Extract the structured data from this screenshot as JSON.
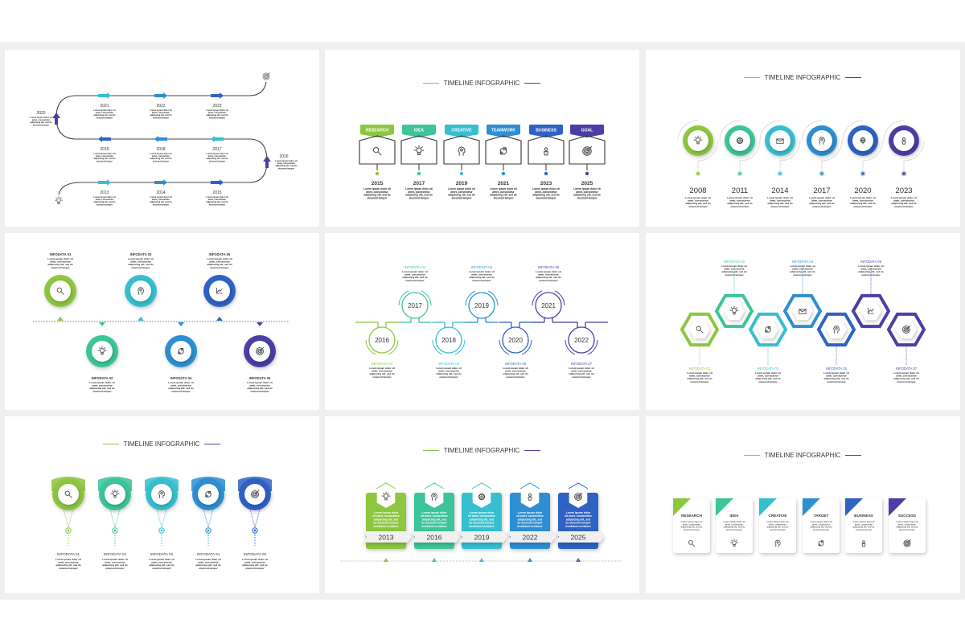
{
  "colors": [
    "#8dc63f",
    "#3cc49a",
    "#36bfcf",
    "#2d8fd2",
    "#2f62c4",
    "#4b3fa6"
  ],
  "text_color": "#333333",
  "background": "#efefef",
  "lorem": [
    "Lorem ipsum dolor sit",
    "amet, consectetur",
    "adipiscing elit, sed do",
    "eiusmod tempor"
  ],
  "lorem_long": [
    "Lorem ipsum dolor",
    "sit amet, consectetur",
    "adipiscing elit, sed",
    "do eiusmod tempor",
    "incididunt ut labore"
  ],
  "title": "TIMELINE INFOGRAPHIC",
  "panel1": {
    "years_top": [
      "2021",
      "2022",
      "2023"
    ],
    "years_middle": [
      "2019",
      "2018",
      "2017"
    ],
    "years_bottom": [
      "2013",
      "2014",
      "2015"
    ],
    "year_left": "2020",
    "year_right": "2016",
    "start_icon": "lightbulb-icon",
    "end_icon": "target-icon"
  },
  "panel2": {
    "steps": [
      {
        "label": "RESEARCH",
        "year": "2015",
        "icon": "search"
      },
      {
        "label": "IDEA",
        "year": "2017",
        "icon": "lightbulb"
      },
      {
        "label": "CREATIVE",
        "year": "2019",
        "icon": "head"
      },
      {
        "label": "TEAMWORK",
        "year": "2021",
        "icon": "puzzle"
      },
      {
        "label": "BUSINESS",
        "year": "2023",
        "icon": "plant"
      },
      {
        "label": "GOAL",
        "year": "2025",
        "icon": "target"
      }
    ]
  },
  "panel3": {
    "steps": [
      {
        "year": "2008",
        "icon": "lightbulb"
      },
      {
        "year": "2011",
        "icon": "gear"
      },
      {
        "year": "2014",
        "icon": "mail"
      },
      {
        "year": "2017",
        "icon": "head"
      },
      {
        "year": "2020",
        "icon": "globe"
      },
      {
        "year": "2023",
        "icon": "plant"
      }
    ]
  },
  "panel4": {
    "items": [
      {
        "label": "INFODATA 01",
        "icon": "search"
      },
      {
        "label": "INFODATA 02",
        "icon": "lightbulb"
      },
      {
        "label": "INFODATA 03",
        "icon": "head"
      },
      {
        "label": "INFODATA 04",
        "icon": "puzzle"
      },
      {
        "label": "INFODATA 05",
        "icon": "chart"
      },
      {
        "label": "INFODATA 06",
        "icon": "target"
      }
    ]
  },
  "panel5": {
    "items": [
      {
        "label": "INFODATA 01",
        "year": "2016"
      },
      {
        "label": "INFODATA 02",
        "year": "2017"
      },
      {
        "label": "INFODATA 03",
        "year": "2018"
      },
      {
        "label": "INFODATA 04",
        "year": "2019"
      },
      {
        "label": "INFODATA 05",
        "year": "2020"
      },
      {
        "label": "INFODATA 06",
        "year": "2021"
      },
      {
        "label": "INFODATA 07",
        "year": "2022"
      }
    ]
  },
  "panel6": {
    "items": [
      {
        "label": "INFODATA 01",
        "icon": "search"
      },
      {
        "label": "INFODATA 02",
        "icon": "lightbulb"
      },
      {
        "label": "INFODATA 03",
        "icon": "puzzle"
      },
      {
        "label": "INFODATA 04",
        "icon": "mail"
      },
      {
        "label": "INFODATA 05",
        "icon": "head"
      },
      {
        "label": "INFODATA 06",
        "icon": "chart"
      },
      {
        "label": "INFODATA 07",
        "icon": "target"
      }
    ]
  },
  "panel7": {
    "items": [
      {
        "label": "INFODATA 01",
        "icon": "search"
      },
      {
        "label": "INFODATA 02",
        "icon": "lightbulb"
      },
      {
        "label": "INFODATA 03",
        "icon": "head"
      },
      {
        "label": "INFODATA 04",
        "icon": "puzzle"
      },
      {
        "label": "INFODATA 05",
        "icon": "target"
      }
    ]
  },
  "panel8": {
    "items": [
      {
        "year": "2013",
        "icon": "lightbulb"
      },
      {
        "year": "2016",
        "icon": "head"
      },
      {
        "year": "2019",
        "icon": "gear"
      },
      {
        "year": "2022",
        "icon": "plant"
      },
      {
        "year": "2025",
        "icon": "target"
      }
    ]
  },
  "panel9": {
    "items": [
      {
        "label": "RESEARCH",
        "icon": "search"
      },
      {
        "label": "IDEA",
        "icon": "lightbulb"
      },
      {
        "label": "CREATIVE",
        "icon": "head"
      },
      {
        "label": "TARGET",
        "icon": "puzzle"
      },
      {
        "label": "BUSINESS",
        "icon": "plant"
      },
      {
        "label": "SUCCESS",
        "icon": "target"
      }
    ]
  }
}
